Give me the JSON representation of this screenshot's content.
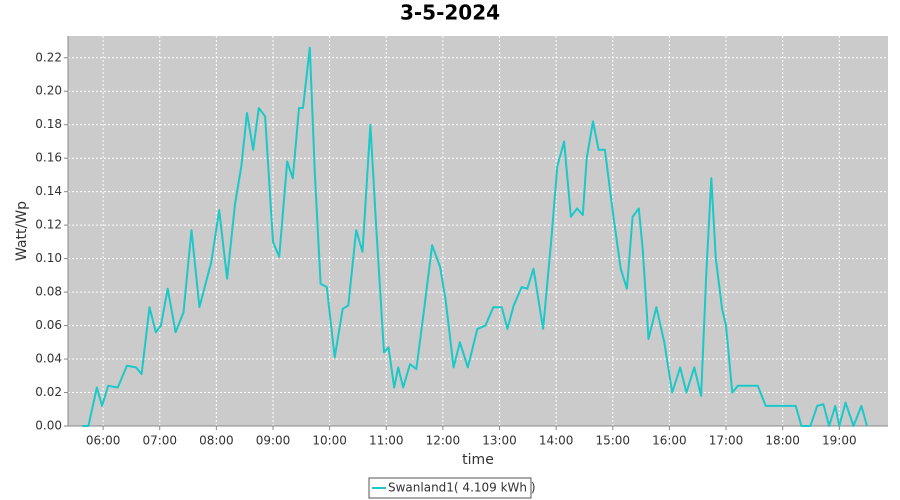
{
  "chart_data": {
    "type": "line",
    "title": "3-5-2024",
    "xlabel": "time",
    "ylabel": "Watt/Wp",
    "x": [
      5.63,
      5.74,
      5.89,
      5.98,
      6.09,
      6.26,
      6.42,
      6.58,
      6.68,
      6.82,
      6.93,
      7.02,
      7.14,
      7.28,
      7.42,
      7.56,
      7.7,
      7.91,
      8.05,
      8.19,
      8.33,
      8.44,
      8.54,
      8.65,
      8.75,
      8.86,
      9.0,
      9.11,
      9.25,
      9.35,
      9.46,
      9.53,
      9.65,
      9.74,
      9.84,
      9.95,
      10.09,
      10.23,
      10.33,
      10.47,
      10.58,
      10.72,
      10.82,
      10.96,
      11.04,
      11.14,
      11.21,
      11.3,
      11.42,
      11.53,
      11.67,
      11.81,
      11.95,
      12.05,
      12.19,
      12.3,
      12.44,
      12.61,
      12.75,
      12.89,
      13.04,
      13.14,
      13.25,
      13.39,
      13.49,
      13.6,
      13.77,
      13.91,
      14.02,
      14.14,
      14.26,
      14.37,
      14.47,
      14.54,
      14.65,
      14.75,
      14.86,
      15.0,
      15.14,
      15.25,
      15.35,
      15.46,
      15.53,
      15.63,
      15.77,
      15.91,
      16.05,
      16.19,
      16.3,
      16.44,
      16.56,
      16.65,
      16.74,
      16.82,
      16.93,
      17.0,
      17.11,
      17.21,
      17.56,
      17.7,
      18.23,
      18.33,
      18.49,
      18.61,
      18.72,
      18.82,
      18.93,
      19.0,
      19.11,
      19.25,
      19.39,
      19.49
    ],
    "series": [
      {
        "name": "Swanland1( 4.109 kWh )",
        "color": "#1cc8c8",
        "values": [
          0,
          0,
          0.023,
          0.012,
          0.024,
          0.023,
          0.036,
          0.035,
          0.031,
          0.071,
          0.056,
          0.06,
          0.082,
          0.056,
          0.068,
          0.117,
          0.071,
          0.098,
          0.129,
          0.088,
          0.133,
          0.155,
          0.187,
          0.165,
          0.19,
          0.185,
          0.11,
          0.101,
          0.158,
          0.148,
          0.19,
          0.19,
          0.226,
          0.15,
          0.085,
          0.083,
          0.041,
          0.07,
          0.072,
          0.117,
          0.104,
          0.18,
          0.12,
          0.044,
          0.047,
          0.023,
          0.035,
          0.023,
          0.037,
          0.034,
          0.07,
          0.108,
          0.095,
          0.075,
          0.035,
          0.05,
          0.035,
          0.058,
          0.06,
          0.071,
          0.071,
          0.058,
          0.072,
          0.083,
          0.082,
          0.094,
          0.058,
          0.11,
          0.155,
          0.17,
          0.125,
          0.13,
          0.126,
          0.16,
          0.182,
          0.165,
          0.165,
          0.128,
          0.094,
          0.082,
          0.125,
          0.13,
          0.105,
          0.052,
          0.071,
          0.05,
          0.02,
          0.035,
          0.02,
          0.035,
          0.018,
          0.09,
          0.148,
          0.1,
          0.07,
          0.06,
          0.02,
          0.024,
          0.024,
          0.012,
          0.012,
          0,
          0,
          0.012,
          0.013,
          0,
          0.012,
          0,
          0.014,
          0,
          0.012,
          0
        ]
      }
    ],
    "xlim": [
      5.38,
      19.86
    ],
    "xticks": [
      {
        "value": 6,
        "label": "06:00"
      },
      {
        "value": 7,
        "label": "07:00"
      },
      {
        "value": 8,
        "label": "08:00"
      },
      {
        "value": 9,
        "label": "09:00"
      },
      {
        "value": 10,
        "label": "10:00"
      },
      {
        "value": 11,
        "label": "11:00"
      },
      {
        "value": 12,
        "label": "12:00"
      },
      {
        "value": 13,
        "label": "13:00"
      },
      {
        "value": 14,
        "label": "14:00"
      },
      {
        "value": 15,
        "label": "15:00"
      },
      {
        "value": 16,
        "label": "16:00"
      },
      {
        "value": 17,
        "label": "17:00"
      },
      {
        "value": 18,
        "label": "18:00"
      },
      {
        "value": 19,
        "label": "19:00"
      }
    ],
    "ylim": [
      0,
      0.233
    ],
    "yticks": [
      {
        "value": 0,
        "label": "0.00"
      },
      0.02,
      0.04,
      0.06,
      0.08,
      {
        "value": 0.1,
        "label": "0.10"
      },
      0.12,
      0.14,
      0.16,
      0.18,
      {
        "value": 0.2,
        "label": "0.20"
      },
      0.22
    ],
    "grid": true,
    "legend": "bottom"
  }
}
